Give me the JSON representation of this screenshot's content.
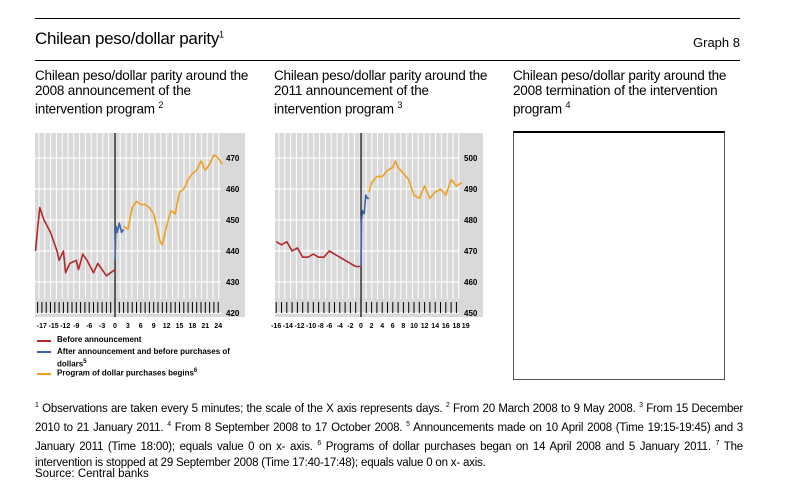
{
  "header": {
    "title": "Chilean peso/dollar parity",
    "title_note": "1",
    "graph_label": "Graph 8"
  },
  "panels": [
    {
      "title": "Chilean peso/dollar parity around the 2008 announcement of the intervention program",
      "note": "2"
    },
    {
      "title": "Chilean peso/dollar parity around the 2011 announcement of the intervention program",
      "note": "3"
    },
    {
      "title": "Chilean peso/dollar parity around the 2008 termination of the intervention program",
      "note": "4"
    }
  ],
  "legend": [
    {
      "label": "Before announcement",
      "color": "#b22a2a"
    },
    {
      "label": "After announcement and before purchases of dollars",
      "note": "5",
      "color": "#3a63b0"
    },
    {
      "label": "Program of dollar purchases begins",
      "note": "6",
      "color": "#f0a020"
    }
  ],
  "chart_data": [
    {
      "type": "line",
      "xlim": [
        -18.5,
        30
      ],
      "ylim": [
        420,
        475
      ],
      "xticks": [
        "-17",
        "-15",
        "-12",
        "-9",
        "-6",
        "-3",
        "0",
        "3",
        "6",
        "9",
        "12",
        "15",
        "18",
        "21",
        "24"
      ],
      "xtick_values": [
        -17,
        -15,
        -12,
        -9,
        -6,
        -3,
        0,
        3,
        6,
        9,
        12,
        15,
        18,
        21,
        24
      ],
      "yticks": [
        420,
        430,
        440,
        450,
        460,
        470
      ],
      "series": [
        {
          "name": "Before announcement",
          "color": "#b22a2a",
          "x": [
            -18.5,
            -18,
            -17.5,
            -16.5,
            -15,
            -13.5,
            -13,
            -12,
            -11.5,
            -10.5,
            -9,
            -8.5,
            -7.5,
            -6.5,
            -5,
            -4,
            -3,
            -2,
            -1,
            0
          ],
          "y": [
            440,
            447,
            454,
            450,
            446,
            440,
            437,
            440,
            433,
            436,
            437,
            434,
            439,
            437,
            433,
            436,
            434,
            432,
            433,
            434
          ]
        },
        {
          "name": "After announcement and before purchases of dollars",
          "color": "#3a63b0",
          "x": [
            0,
            0.2,
            0.5,
            1,
            1.5,
            2
          ],
          "y": [
            437,
            448,
            446,
            449,
            446,
            447
          ]
        },
        {
          "name": "Program of dollar purchases begins",
          "color": "#f0a020",
          "x": [
            2,
            3,
            4,
            5,
            6,
            7,
            8,
            9,
            10,
            10.5,
            11,
            12,
            13,
            14,
            15,
            16,
            17,
            18,
            19,
            20,
            21,
            22,
            23,
            24,
            25
          ],
          "y": [
            448,
            447,
            454,
            456,
            455,
            455,
            454,
            452,
            446,
            443,
            442,
            448,
            453,
            452,
            459,
            460,
            463,
            465,
            466,
            469,
            466,
            468,
            471,
            470,
            468
          ]
        }
      ]
    },
    {
      "type": "line",
      "xlim": [
        -16.2,
        23
      ],
      "ylim": [
        450,
        505
      ],
      "xticks": [
        "-16",
        "-14",
        "-12",
        "-10",
        "-8",
        "-6",
        "-4",
        "-2",
        "0",
        "2",
        "4",
        "6",
        "8",
        "10",
        "12",
        "14",
        "16",
        "18",
        "19"
      ],
      "xtick_values": [
        -16,
        -14,
        -12,
        -10,
        -8,
        -6,
        -4,
        -2,
        0,
        2,
        4,
        6,
        8,
        10,
        12,
        14,
        16,
        18,
        19
      ],
      "yticks": [
        450,
        460,
        470,
        480,
        490,
        500
      ],
      "series": [
        {
          "name": "Before announcement",
          "color": "#b22a2a",
          "x": [
            -16,
            -15,
            -14,
            -13,
            -12,
            -11,
            -10,
            -9,
            -8,
            -7,
            -6,
            -5,
            -4,
            -3,
            -2,
            -1,
            0
          ],
          "y": [
            473,
            472,
            473,
            470,
            471,
            468,
            468,
            469,
            468,
            468,
            470,
            469,
            468,
            467,
            466,
            465,
            465
          ]
        },
        {
          "name": "After announcement and before purchases of dollars",
          "color": "#3a63b0",
          "x": [
            0,
            0.1,
            0.3,
            0.6,
            0.9,
            1.2,
            1.5
          ],
          "y": [
            465,
            480,
            483,
            482,
            488,
            487,
            487
          ]
        },
        {
          "name": "Program of dollar purchases begins",
          "color": "#f0a020",
          "x": [
            1.5,
            2,
            3,
            4,
            5,
            6,
            6.5,
            7,
            8,
            9,
            10,
            11,
            12,
            13,
            14,
            15,
            16,
            17,
            18,
            19
          ],
          "y": [
            489,
            492,
            494,
            494,
            496,
            497,
            499,
            497,
            495,
            493,
            488,
            487,
            491,
            487,
            489,
            490,
            488,
            493,
            491,
            492
          ]
        }
      ]
    },
    {
      "type": "line",
      "series": []
    }
  ],
  "footnotes": [
    {
      "n": "1",
      "text": "Observations are taken every 5 minutes; the scale of the X axis represents days."
    },
    {
      "n": "2",
      "text": "From 20 March 2008 to 9 May 2008."
    },
    {
      "n": "3",
      "text": "From 15 December 2010 to 21 January 2011."
    },
    {
      "n": "4",
      "text": "From 8 September 2008 to 17 October 2008."
    },
    {
      "n": "5",
      "text": "Announcements made on 10 April 2008 (Time 19:15-19:45) and 3 January 2011 (Time 18:00); equals value 0 on x- axis."
    },
    {
      "n": "6",
      "text": "Programs of dollar purchases began on 14 April 2008 and 5 January 2011."
    },
    {
      "n": "7",
      "text": "The intervention is stopped at 29 September 2008 (Time 17:40-17:48); equals value 0 on x- axis."
    }
  ],
  "source": "Source: Central banks"
}
